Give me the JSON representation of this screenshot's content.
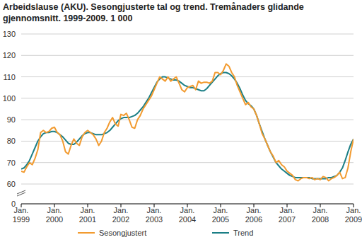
{
  "chart_data": {
    "type": "line",
    "title": "Arbeidslause (AKU). Sesongjusterte tal og trend. Tremånaders glidande gjennomsnitt. 1999-2009. 1 000",
    "categories": [
      "Jan. 1999",
      null,
      null,
      null,
      null,
      null,
      null,
      null,
      null,
      null,
      null,
      null,
      "Jan. 2000",
      null,
      null,
      null,
      null,
      null,
      null,
      null,
      null,
      null,
      null,
      null,
      "Jan. 2001",
      null,
      null,
      null,
      null,
      null,
      null,
      null,
      null,
      null,
      null,
      null,
      "Jan. 2002",
      null,
      null,
      null,
      null,
      null,
      null,
      null,
      null,
      null,
      null,
      null,
      "Jan. 2003",
      null,
      null,
      null,
      null,
      null,
      null,
      null,
      null,
      null,
      null,
      null,
      "Jan. 2004",
      null,
      null,
      null,
      null,
      null,
      null,
      null,
      null,
      null,
      null,
      null,
      "Jan. 2005",
      null,
      null,
      null,
      null,
      null,
      null,
      null,
      null,
      null,
      null,
      null,
      "Jan. 2006",
      null,
      null,
      null,
      null,
      null,
      null,
      null,
      null,
      null,
      null,
      null,
      "Jan. 2007",
      null,
      null,
      null,
      null,
      null,
      null,
      null,
      null,
      null,
      null,
      null,
      "Jan. 2008",
      null,
      null,
      null,
      null,
      null,
      null,
      null,
      null,
      null,
      null,
      null,
      "Jan. 2009"
    ],
    "series": [
      {
        "name": "Sesongjustert",
        "color": "#f29b30",
        "values": [
          66,
          65.5,
          68,
          70,
          69,
          72,
          76,
          84,
          85,
          84,
          84.5,
          86,
          86.5,
          84,
          83,
          80,
          75,
          74,
          78,
          81,
          79,
          78,
          82,
          84,
          85,
          84,
          83,
          81,
          78,
          80,
          84,
          86,
          89,
          91,
          88,
          87,
          92.5,
          92,
          93,
          90,
          86.5,
          86,
          90,
          92,
          95,
          97,
          99,
          101,
          104,
          107,
          110,
          109,
          108,
          110,
          108,
          109,
          110,
          107,
          104,
          103,
          105,
          105.5,
          106,
          104,
          108,
          107,
          107.5,
          107.5,
          107,
          108,
          112,
          112,
          111,
          113,
          116,
          115,
          112,
          110,
          106,
          103,
          100,
          97,
          98,
          96,
          95,
          92,
          88,
          83.5,
          81,
          78,
          75,
          73,
          70,
          71,
          69,
          68,
          66,
          65,
          64,
          62,
          61.5,
          62.5,
          63,
          63,
          62.5,
          63,
          62,
          62.5,
          62,
          63.5,
          63,
          61.5,
          62.5,
          63,
          64,
          65.5,
          62.5,
          63,
          67.5,
          75,
          81
        ]
      },
      {
        "name": "Trend",
        "color": "#1b7f86",
        "values": [
          67,
          67.5,
          69,
          71,
          74,
          77,
          80,
          82,
          83.5,
          84,
          84,
          84.5,
          84.5,
          84,
          83,
          82,
          80.5,
          79,
          78.5,
          78.5,
          79.5,
          81,
          82.5,
          83.5,
          84,
          84,
          83.5,
          83,
          83,
          83,
          83.5,
          84,
          85,
          86.5,
          88,
          89.5,
          90.5,
          91,
          91,
          91,
          91.5,
          92,
          93,
          94.5,
          96,
          98,
          100,
          102.5,
          105,
          107.5,
          109,
          110,
          110,
          109.5,
          109,
          108.5,
          108.5,
          108,
          107,
          106,
          105.5,
          105,
          105,
          104.5,
          104,
          103.5,
          103.5,
          104.5,
          106,
          107.5,
          109,
          110.5,
          111.5,
          112,
          112,
          111.5,
          110.5,
          109,
          107,
          104.5,
          101.5,
          99,
          97.5,
          96.5,
          95,
          92,
          88,
          84.5,
          81,
          78,
          75,
          72.5,
          70,
          68.5,
          67,
          66,
          65,
          64,
          63.5,
          63,
          63,
          63,
          63,
          63,
          63,
          62.5,
          62.5,
          62.5,
          62.5,
          62.5,
          62.5,
          63,
          63,
          63.5,
          64,
          65.5,
          67.5,
          71,
          75,
          78.5,
          81
        ]
      }
    ],
    "ylim": [
      0,
      130
    ],
    "yticks": [
      0,
      60,
      70,
      80,
      90,
      100,
      110,
      120,
      130
    ],
    "grid": true,
    "legend": "bottom"
  }
}
